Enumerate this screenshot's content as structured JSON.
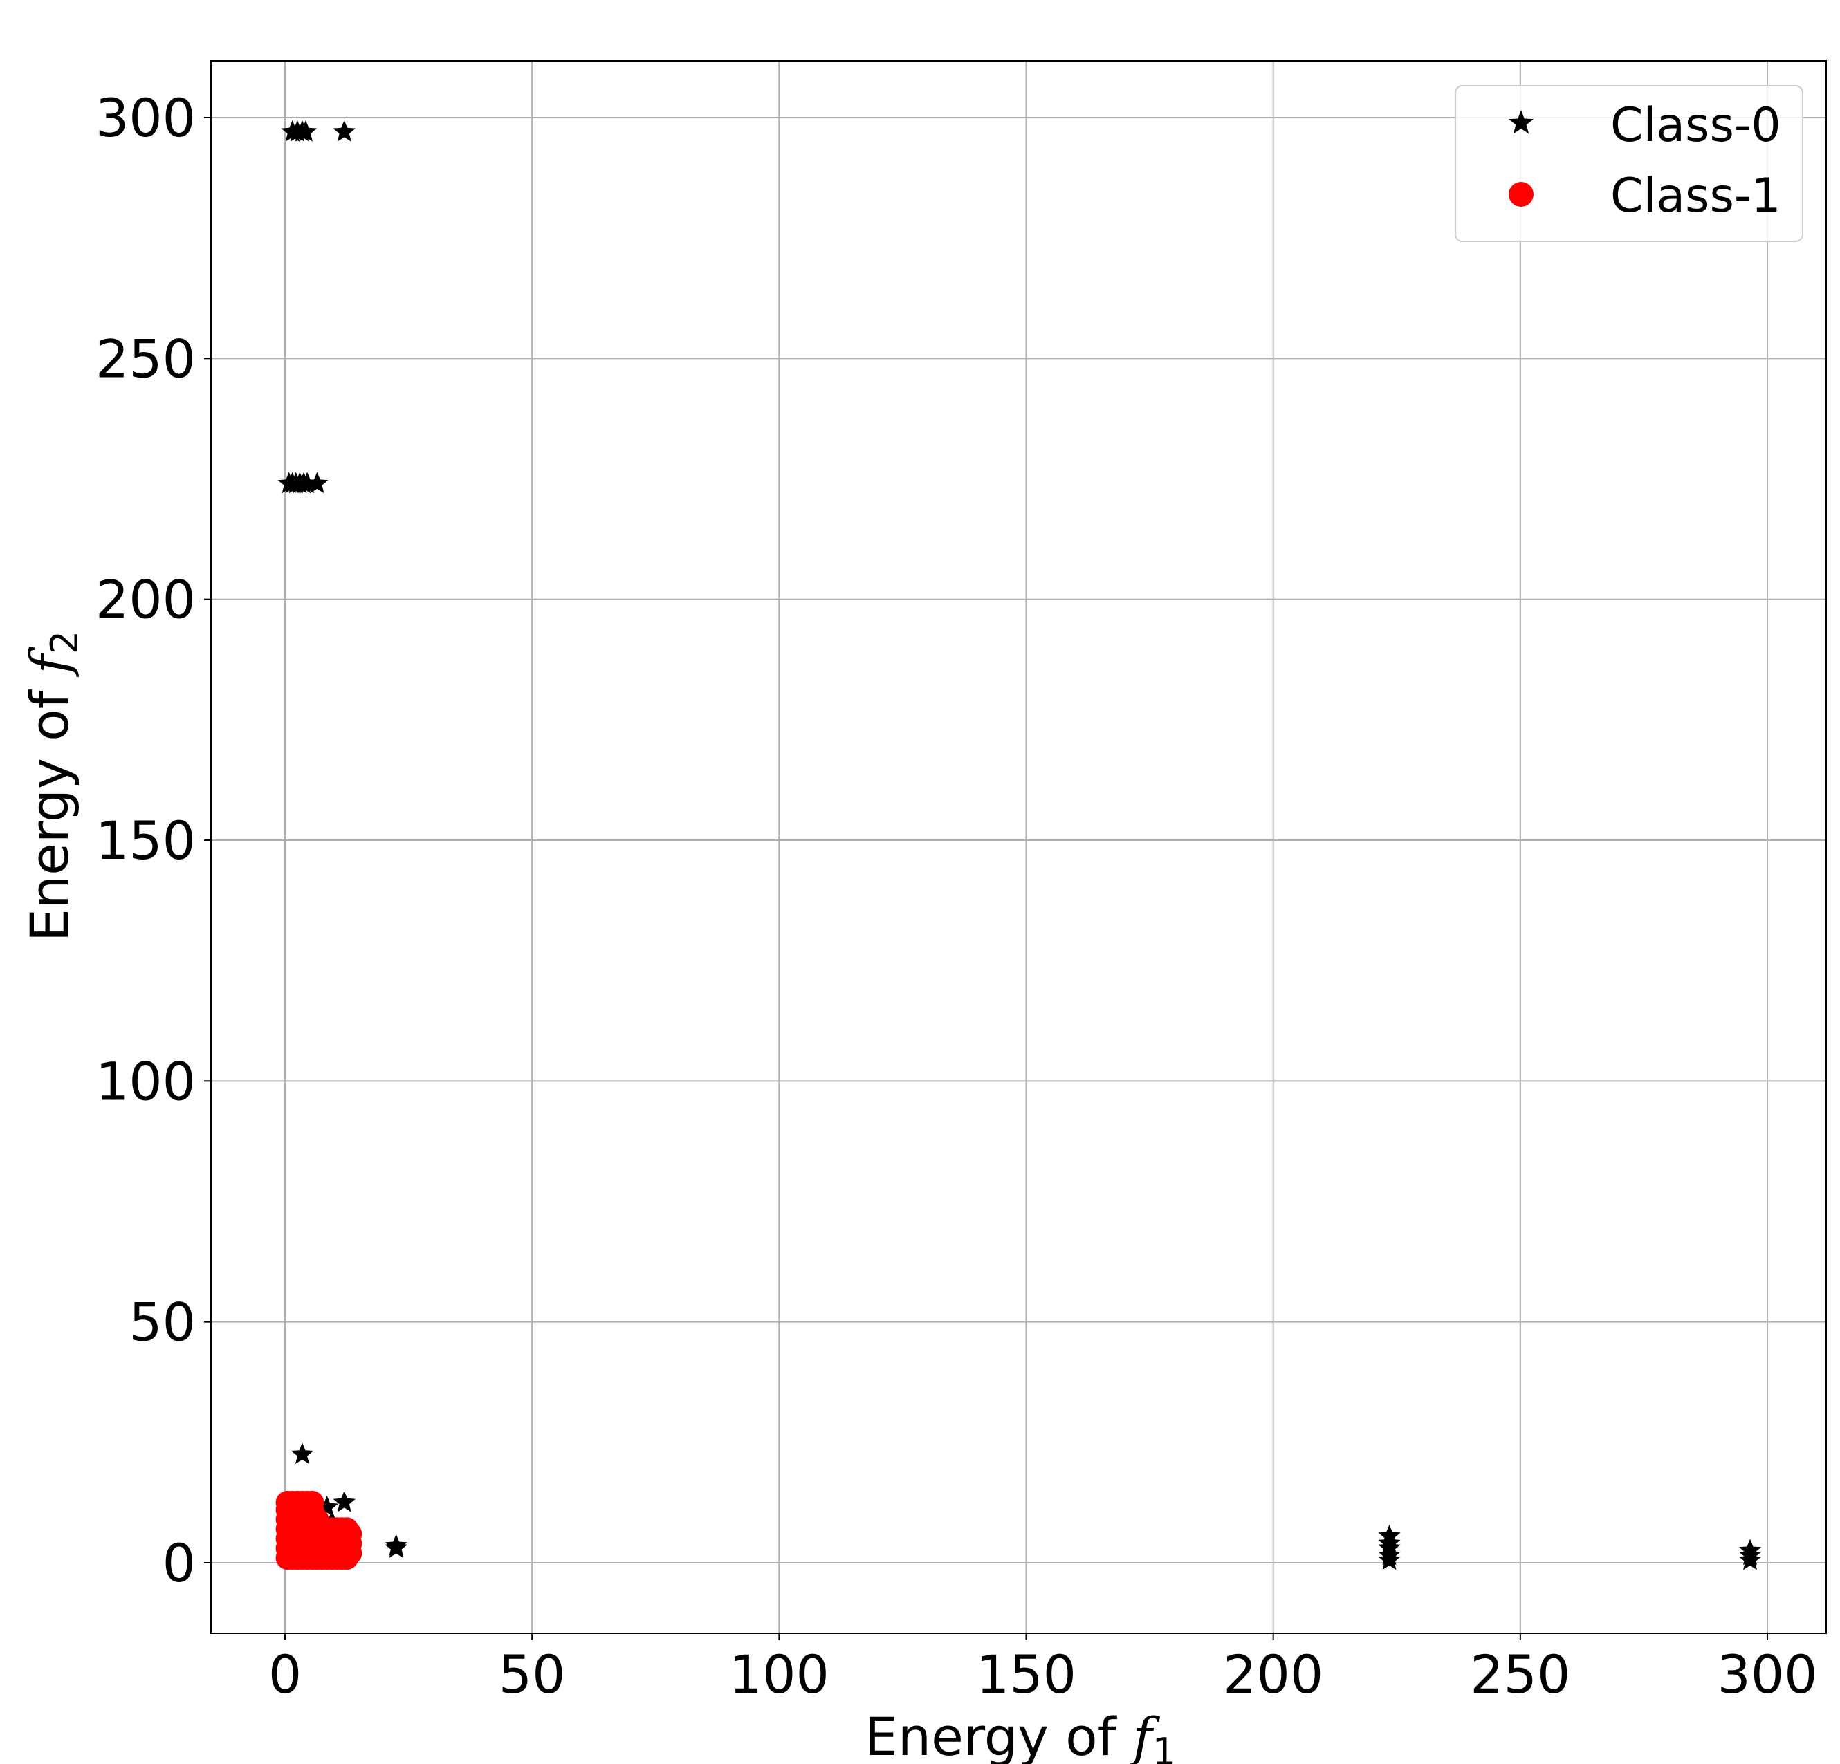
{
  "chart_data": {
    "type": "scatter",
    "title": "",
    "xlabel": "Energy of",
    "xlabel_var": "f",
    "xlabel_sub": "1",
    "ylabel": "Energy of",
    "ylabel_var": "f",
    "ylabel_sub": "2",
    "xlim": [
      -15,
      312
    ],
    "ylim": [
      -15,
      312
    ],
    "xticks": [
      0,
      50,
      100,
      150,
      200,
      250,
      300
    ],
    "yticks": [
      0,
      50,
      100,
      150,
      200,
      250,
      300
    ],
    "grid": true,
    "legend_position": "top-right",
    "series": [
      {
        "name": "Class-0",
        "marker": "star",
        "color": "#000000",
        "points": [
          [
            1.5,
            297
          ],
          [
            2.5,
            297
          ],
          [
            3.5,
            297
          ],
          [
            4.2,
            297
          ],
          [
            12,
            297
          ],
          [
            0.8,
            224
          ],
          [
            1.5,
            224
          ],
          [
            2.2,
            224
          ],
          [
            3,
            224
          ],
          [
            3.8,
            224
          ],
          [
            4.5,
            224
          ],
          [
            6.5,
            224
          ],
          [
            3.5,
            22.5
          ],
          [
            12,
            12.5
          ],
          [
            8.5,
            11.5
          ],
          [
            9.5,
            8.5
          ],
          [
            11,
            6
          ],
          [
            7,
            3
          ],
          [
            22.5,
            3.5
          ],
          [
            22.5,
            3
          ],
          [
            223.5,
            5.5
          ],
          [
            223.5,
            4
          ],
          [
            223.5,
            3
          ],
          [
            223.5,
            1.5
          ],
          [
            223.5,
            0.5
          ],
          [
            296.5,
            2.5
          ],
          [
            296.5,
            1.5
          ],
          [
            296.5,
            0.5
          ]
        ]
      },
      {
        "name": "Class-1",
        "marker": "circle",
        "color": "#ff0000",
        "points": [
          [
            0.5,
            1
          ],
          [
            0.5,
            3
          ],
          [
            0.5,
            5
          ],
          [
            0.5,
            7
          ],
          [
            0.5,
            9
          ],
          [
            0.5,
            11
          ],
          [
            0.5,
            12.5
          ],
          [
            1.5,
            1
          ],
          [
            1.5,
            3
          ],
          [
            1.5,
            5
          ],
          [
            1.5,
            7
          ],
          [
            1.5,
            9
          ],
          [
            1.5,
            11
          ],
          [
            1.5,
            12.5
          ],
          [
            2.5,
            1
          ],
          [
            2.5,
            3
          ],
          [
            2.5,
            5
          ],
          [
            2.5,
            7
          ],
          [
            2.5,
            9
          ],
          [
            2.5,
            11
          ],
          [
            2.5,
            12.5
          ],
          [
            3.5,
            1
          ],
          [
            3.5,
            3
          ],
          [
            3.5,
            5
          ],
          [
            3.5,
            7
          ],
          [
            3.5,
            9
          ],
          [
            3.5,
            11
          ],
          [
            3.5,
            12.5
          ],
          [
            4.5,
            1
          ],
          [
            4.5,
            3
          ],
          [
            4.5,
            5
          ],
          [
            4.5,
            7
          ],
          [
            4.5,
            9
          ],
          [
            4.5,
            11
          ],
          [
            4.5,
            12.5
          ],
          [
            5.5,
            1
          ],
          [
            5.5,
            3
          ],
          [
            5.5,
            5
          ],
          [
            5.5,
            7
          ],
          [
            5.5,
            9
          ],
          [
            5.5,
            11
          ],
          [
            5.5,
            12.5
          ],
          [
            6.5,
            1
          ],
          [
            6.5,
            3
          ],
          [
            6.5,
            5
          ],
          [
            6.5,
            7
          ],
          [
            6.5,
            9
          ],
          [
            7.5,
            1
          ],
          [
            7.5,
            3
          ],
          [
            7.5,
            5
          ],
          [
            7.5,
            7
          ],
          [
            8.5,
            1
          ],
          [
            8.5,
            3
          ],
          [
            8.5,
            5
          ],
          [
            8.5,
            7
          ],
          [
            9.5,
            1
          ],
          [
            9.5,
            3
          ],
          [
            9.5,
            5
          ],
          [
            9.5,
            7
          ],
          [
            10.5,
            1
          ],
          [
            10.5,
            3
          ],
          [
            10.5,
            5
          ],
          [
            10.5,
            7
          ],
          [
            11.5,
            1
          ],
          [
            11.5,
            3
          ],
          [
            11.5,
            5
          ],
          [
            11.5,
            7
          ],
          [
            12.5,
            1
          ],
          [
            12.5,
            3
          ],
          [
            12.5,
            5
          ],
          [
            12.5,
            7
          ],
          [
            13.2,
            2
          ],
          [
            13.2,
            4
          ],
          [
            13.2,
            6
          ]
        ]
      }
    ]
  }
}
